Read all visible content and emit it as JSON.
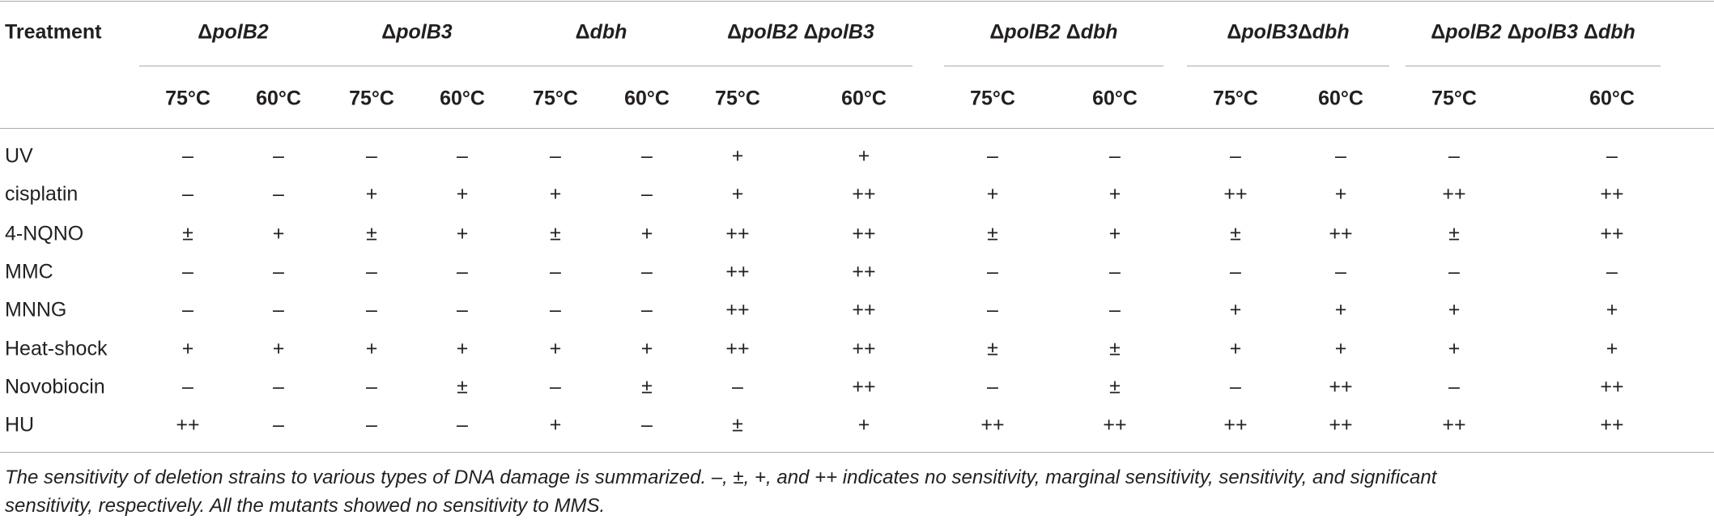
{
  "table": {
    "corner": "Treatment",
    "groups": [
      {
        "parts": [
          "Δ",
          "polB2"
        ]
      },
      {
        "parts": [
          "Δ",
          "polB3"
        ]
      },
      {
        "parts": [
          "Δ",
          "dbh"
        ]
      },
      {
        "parts": [
          "Δ",
          "polB2 ",
          "Δ",
          "polB3"
        ]
      },
      {
        "parts": [
          "Δ",
          "polB2 ",
          "Δ",
          "dbh"
        ]
      },
      {
        "parts": [
          "Δ",
          "polB3",
          "Δ",
          "dbh"
        ]
      },
      {
        "parts": [
          "Δ",
          "polB2 ",
          "Δ",
          "polB3 ",
          "Δ",
          "dbh"
        ]
      }
    ],
    "subheaders": [
      "75°C",
      "60°C",
      "75°C",
      "60°C",
      "75°C",
      "60°C",
      "75°C",
      "60°C",
      "75°C",
      "60°C",
      "75°C",
      "60°C",
      "75°C",
      "60°C"
    ],
    "rows": [
      {
        "label": "UV",
        "cells": [
          "–",
          "–",
          "–",
          "–",
          "–",
          "–",
          "+",
          "+",
          "–",
          "–",
          "–",
          "–",
          "–",
          "–"
        ]
      },
      {
        "label": "cisplatin",
        "cells": [
          "–",
          "–",
          "+",
          "+",
          "+",
          "–",
          "+",
          "++",
          "+",
          "+",
          "++",
          "+",
          "++",
          "++"
        ]
      },
      {
        "label": "4-NQNO",
        "cells": [
          "±",
          "+",
          "±",
          "+",
          "±",
          "+",
          "++",
          "++",
          "±",
          "+",
          "±",
          "++",
          "±",
          "++"
        ]
      },
      {
        "label": "MMC",
        "cells": [
          "–",
          "–",
          "–",
          "–",
          "–",
          "–",
          "++",
          "++",
          "–",
          "–",
          "–",
          "–",
          "–",
          "–"
        ]
      },
      {
        "label": "MNNG",
        "cells": [
          "–",
          "–",
          "–",
          "–",
          "–",
          "–",
          "++",
          "++",
          "–",
          "–",
          "+",
          "+",
          "+",
          "+"
        ]
      },
      {
        "label": "Heat-shock",
        "cells": [
          "+",
          "+",
          "+",
          "+",
          "+",
          "+",
          "++",
          "++",
          "±",
          "±",
          "+",
          "+",
          "+",
          "+"
        ]
      },
      {
        "label": "Novobiocin",
        "cells": [
          "–",
          "–",
          "–",
          "±",
          "–",
          "±",
          "–",
          "++",
          "–",
          "±",
          "–",
          "++",
          "–",
          "++"
        ]
      },
      {
        "label": "HU",
        "cells": [
          "++",
          "–",
          "–",
          "–",
          "+",
          "–",
          "±",
          "+",
          "++",
          "++",
          "++",
          "++",
          "++",
          "++"
        ]
      }
    ]
  },
  "caption": [
    "The sensitivity of deletion strains to various types of DNA damage is summarized. –, ±, +, and ++ indicates no sensitivity, marginal sensitivity, sensitivity, and significant",
    "sensitivity, respectively. All the mutants showed no sensitivity to MMS."
  ]
}
